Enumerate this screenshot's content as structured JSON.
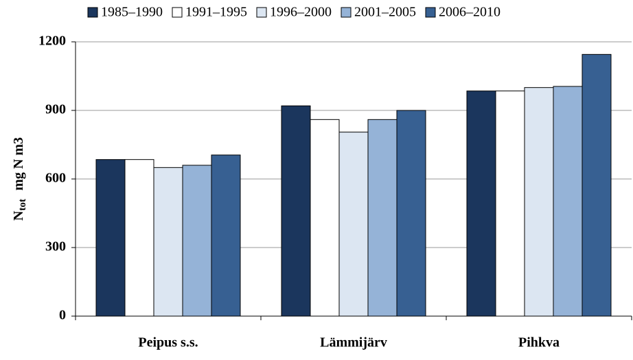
{
  "chart_data": {
    "type": "bar",
    "ylabel": [
      "N",
      "tot",
      "mg N m3"
    ],
    "categories": [
      "Peipus s.s.",
      "Lämmijärv",
      "Pihkva"
    ],
    "series": [
      {
        "name": "1985–1990",
        "color": "#1b365d",
        "values": [
          685,
          920,
          985
        ]
      },
      {
        "name": "1991–1995",
        "color": "#ffffff",
        "values": [
          685,
          860,
          985
        ]
      },
      {
        "name": "1996–2000",
        "color": "#dce6f2",
        "values": [
          650,
          805,
          1000
        ]
      },
      {
        "name": "2001–2005",
        "color": "#95b3d7",
        "values": [
          660,
          860,
          1005
        ]
      },
      {
        "name": "2006–2010",
        "color": "#376092",
        "values": [
          705,
          900,
          1145
        ]
      }
    ],
    "ylim": [
      0,
      1200
    ],
    "yticks": [
      0,
      300,
      600,
      900,
      1200
    ],
    "grid": true,
    "legend": "top"
  }
}
